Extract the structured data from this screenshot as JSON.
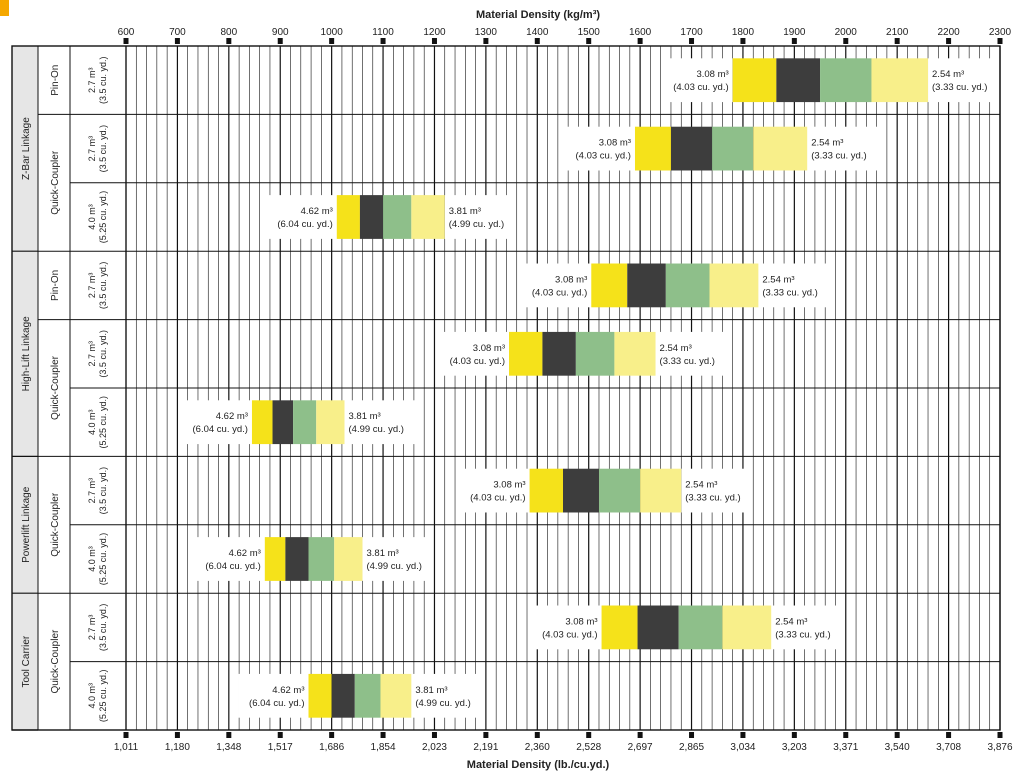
{
  "chart_data": {
    "type": "bar",
    "title": "",
    "x_top": {
      "label": "Material Density (kg/m³)",
      "ticks": [
        600,
        700,
        800,
        900,
        1000,
        1100,
        1200,
        1300,
        1400,
        1500,
        1600,
        1700,
        1800,
        1900,
        2000,
        2100,
        2200,
        2300
      ]
    },
    "x_bottom": {
      "label": "Material Density (lb./cu.yd.)",
      "ticks": [
        "1,011",
        "1,180",
        "1,348",
        "1,517",
        "1,686",
        "1,854",
        "2,023",
        "2,191",
        "2,360",
        "2,528",
        "2,697",
        "2,865",
        "3,034",
        "3,203",
        "3,371",
        "3,540",
        "3,708",
        "3,876"
      ]
    },
    "xlim": [
      600,
      2300
    ],
    "segment_colors": [
      "#f5e21a",
      "#3d3d3d",
      "#8ebf8a",
      "#f8ef8a"
    ],
    "groups": [
      {
        "name": "Z-Bar Linkage",
        "subs": [
          {
            "name": "Pin-On",
            "rows": [
              {
                "size": [
                  "2.7 m³",
                  "(3.5 cu. yd.)"
                ],
                "bounds": [
                  1780,
                  1865,
                  1950,
                  2050,
                  2160
                ],
                "left_label": [
                  "3.08 m³",
                  "(4.03 cu. yd.)"
                ],
                "right_label": [
                  "2.54 m³",
                  "(3.33 cu. yd.)"
                ]
              }
            ]
          },
          {
            "name": "Quick-Coupler",
            "rows": [
              {
                "size": [
                  "2.7 m³",
                  "(3.5 cu. yd.)"
                ],
                "bounds": [
                  1590,
                  1660,
                  1740,
                  1820,
                  1925
                ],
                "left_label": [
                  "3.08 m³",
                  "(4.03 cu. yd.)"
                ],
                "right_label": [
                  "2.54 m³",
                  "(3.33 cu. yd.)"
                ]
              },
              {
                "size": [
                  "4.0 m³",
                  "(5.25 cu. yd.)"
                ],
                "bounds": [
                  1010,
                  1055,
                  1100,
                  1155,
                  1220
                ],
                "left_label": [
                  "4.62 m³",
                  "(6.04 cu. yd.)"
                ],
                "right_label": [
                  "3.81 m³",
                  "(4.99 cu. yd.)"
                ]
              }
            ]
          }
        ]
      },
      {
        "name": "High-Lift Linkage",
        "subs": [
          {
            "name": "Pin-On",
            "rows": [
              {
                "size": [
                  "2.7 m³",
                  "(3.5 cu. yd.)"
                ],
                "bounds": [
                  1505,
                  1575,
                  1650,
                  1735,
                  1830
                ],
                "left_label": [
                  "3.08 m³",
                  "(4.03 cu. yd.)"
                ],
                "right_label": [
                  "2.54 m³",
                  "(3.33 cu. yd.)"
                ]
              }
            ]
          },
          {
            "name": "Quick-Coupler",
            "rows": [
              {
                "size": [
                  "2.7 m³",
                  "(3.5 cu. yd.)"
                ],
                "bounds": [
                  1345,
                  1410,
                  1475,
                  1550,
                  1630
                ],
                "left_label": [
                  "3.08 m³",
                  "(4.03 cu. yd.)"
                ],
                "right_label": [
                  "2.54 m³",
                  "(3.33 cu. yd.)"
                ]
              },
              {
                "size": [
                  "4.0 m³",
                  "(5.25 cu. yd.)"
                ],
                "bounds": [
                  845,
                  885,
                  925,
                  970,
                  1025
                ],
                "left_label": [
                  "4.62 m³",
                  "(6.04 cu. yd.)"
                ],
                "right_label": [
                  "3.81 m³",
                  "(4.99 cu. yd.)"
                ]
              }
            ]
          }
        ]
      },
      {
        "name": "Powerlift Linkage",
        "subs": [
          {
            "name": "Quick-Coupler",
            "rows": [
              {
                "size": [
                  "2.7 m³",
                  "(3.5 cu. yd.)"
                ],
                "bounds": [
                  1385,
                  1450,
                  1520,
                  1600,
                  1680
                ],
                "left_label": [
                  "3.08 m³",
                  "(4.03 cu. yd.)"
                ],
                "right_label": [
                  "2.54 m³",
                  "(3.33 cu. yd.)"
                ]
              },
              {
                "size": [
                  "4.0 m³",
                  "(5.25 cu. yd.)"
                ],
                "bounds": [
                  870,
                  910,
                  955,
                  1005,
                  1060
                ],
                "left_label": [
                  "4.62 m³",
                  "(6.04 cu. yd.)"
                ],
                "right_label": [
                  "3.81 m³",
                  "(4.99 cu. yd.)"
                ]
              }
            ]
          }
        ]
      },
      {
        "name": "Tool Carrier",
        "subs": [
          {
            "name": "Quick-Coupler",
            "rows": [
              {
                "size": [
                  "2.7 m³",
                  "(3.5 cu. yd.)"
                ],
                "bounds": [
                  1525,
                  1595,
                  1675,
                  1760,
                  1855
                ],
                "left_label": [
                  "3.08 m³",
                  "(4.03 cu. yd.)"
                ],
                "right_label": [
                  "2.54 m³",
                  "(3.33 cu. yd.)"
                ]
              },
              {
                "size": [
                  "4.0 m³",
                  "(5.25 cu. yd.)"
                ],
                "bounds": [
                  955,
                  1000,
                  1045,
                  1095,
                  1155
                ],
                "left_label": [
                  "4.62 m³",
                  "(6.04 cu. yd.)"
                ],
                "right_label": [
                  "3.81 m³",
                  "(4.99 cu. yd.)"
                ]
              }
            ]
          }
        ]
      }
    ]
  }
}
